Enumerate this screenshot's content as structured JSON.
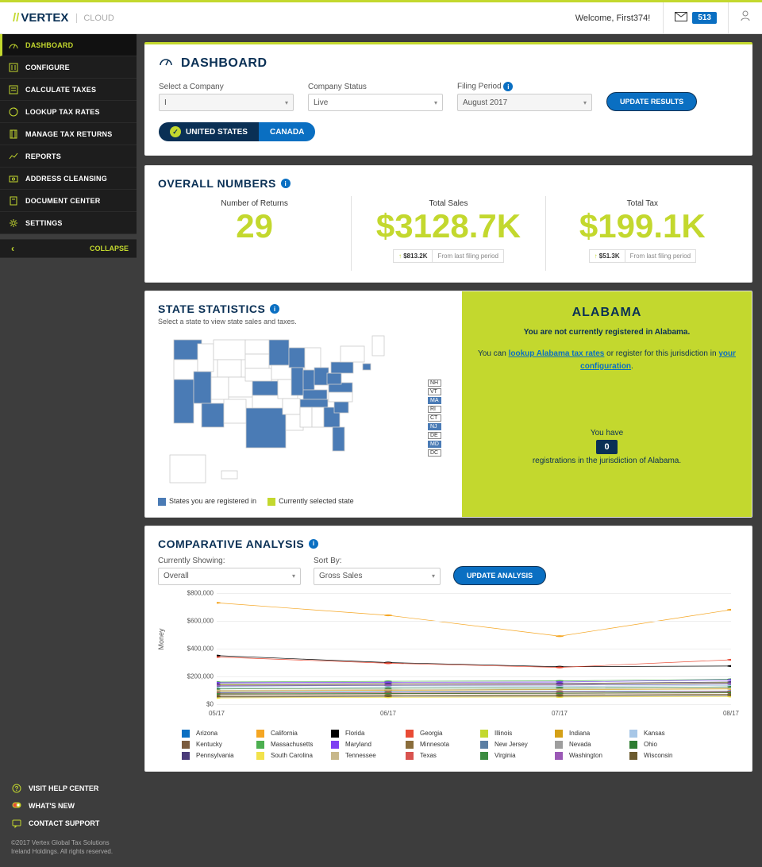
{
  "brand": {
    "name": "VERTEX",
    "sub": "CLOUD"
  },
  "topbar": {
    "welcome": "Welcome, First374!",
    "notif_count": "513"
  },
  "sidebar": {
    "items": [
      {
        "label": "DASHBOARD",
        "active": true
      },
      {
        "label": "CONFIGURE"
      },
      {
        "label": "CALCULATE TAXES"
      },
      {
        "label": "LOOKUP TAX RATES"
      },
      {
        "label": "MANAGE TAX RETURNS"
      },
      {
        "label": "REPORTS"
      },
      {
        "label": "ADDRESS CLEANSING"
      },
      {
        "label": "DOCUMENT CENTER"
      },
      {
        "label": "SETTINGS"
      }
    ],
    "collapse": "COLLAPSE",
    "footer_links": [
      {
        "label": "VISIT HELP CENTER"
      },
      {
        "label": "WHAT'S NEW"
      },
      {
        "label": "CONTACT SUPPORT"
      }
    ],
    "copyright": "©2017 Vertex Global Tax Solutions Ireland Holdings. All rights reserved."
  },
  "page": {
    "title": "DASHBOARD",
    "filters": {
      "company_label": "Select a Company",
      "company_value": "I",
      "status_label": "Company Status",
      "status_value": "Live",
      "period_label": "Filing Period",
      "period_value": "August 2017",
      "update_btn": "UPDATE RESULTS"
    },
    "tabs": {
      "us": "UNITED STATES",
      "ca": "CANADA"
    }
  },
  "overall": {
    "title": "OVERALL NUMBERS",
    "stats": [
      {
        "label": "Number of Returns",
        "value": "29"
      },
      {
        "label": "Total Sales",
        "value": "$3128.7K",
        "delta": "$813.2K",
        "delta_label": "From last filing period"
      },
      {
        "label": "Total Tax",
        "value": "$199.1K",
        "delta": "$51.3K",
        "delta_label": "From last filing period"
      }
    ]
  },
  "state_stats": {
    "title": "STATE STATISTICS",
    "subtitle": "Select a state to view state sales and taxes.",
    "legend_registered": "States you are registered in",
    "legend_selected": "Currently selected state",
    "legend_registered_color": "#4a7bb5",
    "legend_selected_color": "#c3d82e",
    "selected_state": "ALABAMA",
    "not_registered_msg": "You are not currently registered in Alabama.",
    "register_pre": "You can ",
    "register_link1": "lookup Alabama tax rates",
    "register_mid": " or register for this jurisdiction in ",
    "register_link2": "your configuration",
    "register_end": ".",
    "youhave": "You have",
    "reg_count": "0",
    "reg_tail": "registrations in the jurisdiction of Alabama.",
    "mini_labels": [
      "NH",
      "VT",
      "MA",
      "RI",
      "CT",
      "NJ",
      "DE",
      "MD",
      "DC"
    ],
    "mini_blue": [
      "MA",
      "NJ",
      "MD"
    ]
  },
  "comparative": {
    "title": "COMPARATIVE ANALYSIS",
    "showing_label": "Currently Showing:",
    "showing_value": "Overall",
    "sort_label": "Sort By:",
    "sort_value": "Gross Sales",
    "update_btn": "UPDATE ANALYSIS",
    "y_axis": "Money",
    "y_ticks": [
      "$0",
      "$200,000",
      "$400,000",
      "$600,000",
      "$800,000"
    ],
    "y_max": 800000,
    "x_ticks": [
      "05/17",
      "06/17",
      "07/17",
      "08/17"
    ],
    "series": [
      {
        "name": "Arizona",
        "color": "#0a6fc2",
        "values": [
          85000,
          90000,
          92000,
          95000
        ]
      },
      {
        "name": "California",
        "color": "#f5a623",
        "values": [
          730000,
          640000,
          490000,
          680000
        ]
      },
      {
        "name": "Florida",
        "color": "#000000",
        "values": [
          350000,
          300000,
          270000,
          275000
        ]
      },
      {
        "name": "Georgia",
        "color": "#e94b35",
        "values": [
          340000,
          295000,
          265000,
          320000
        ]
      },
      {
        "name": "Illinois",
        "color": "#c3d82e",
        "values": [
          140000,
          145000,
          148000,
          155000
        ]
      },
      {
        "name": "Indiana",
        "color": "#d4a017",
        "values": [
          95000,
          100000,
          105000,
          110000
        ]
      },
      {
        "name": "Kansas",
        "color": "#a7c7e7",
        "values": [
          120000,
          125000,
          128000,
          135000
        ]
      },
      {
        "name": "Kentucky",
        "color": "#7b5c3e",
        "values": [
          70000,
          75000,
          78000,
          82000
        ]
      },
      {
        "name": "Massachusetts",
        "color": "#4caf50",
        "values": [
          160000,
          165000,
          168000,
          180000
        ]
      },
      {
        "name": "Maryland",
        "color": "#7e3ff2",
        "values": [
          155000,
          158000,
          160000,
          175000
        ]
      },
      {
        "name": "Minnesota",
        "color": "#8a6d3b",
        "values": [
          60000,
          65000,
          68000,
          72000
        ]
      },
      {
        "name": "New Jersey",
        "color": "#5b7ea3",
        "values": [
          130000,
          135000,
          138000,
          145000
        ]
      },
      {
        "name": "Nevada",
        "color": "#9e9e9e",
        "values": [
          50000,
          55000,
          58000,
          62000
        ]
      },
      {
        "name": "Ohio",
        "color": "#2e7d32",
        "values": [
          110000,
          115000,
          118000,
          125000
        ]
      },
      {
        "name": "Pennsylvania",
        "color": "#4a3b7a",
        "values": [
          145000,
          148000,
          150000,
          160000
        ]
      },
      {
        "name": "South Carolina",
        "color": "#f2e24b",
        "values": [
          45000,
          50000,
          52000,
          55000
        ]
      },
      {
        "name": "Tennessee",
        "color": "#c8b88a",
        "values": [
          100000,
          105000,
          108000,
          115000
        ]
      },
      {
        "name": "Texas",
        "color": "#d9534f",
        "values": [
          80000,
          85000,
          88000,
          92000
        ]
      },
      {
        "name": "Virginia",
        "color": "#3c8c40",
        "values": [
          75000,
          78000,
          80000,
          85000
        ]
      },
      {
        "name": "Washington",
        "color": "#9b59b6",
        "values": [
          135000,
          138000,
          140000,
          150000
        ]
      },
      {
        "name": "Wisconsin",
        "color": "#6b5a2e",
        "values": [
          55000,
          58000,
          60000,
          65000
        ]
      }
    ]
  },
  "colors": {
    "accent": "#c3d82e",
    "primary": "#0a6fc2",
    "dark": "#0a3055",
    "map_registered": "#4a7bb5",
    "map_unregistered": "#ffffff",
    "map_stroke": "#cccccc"
  }
}
